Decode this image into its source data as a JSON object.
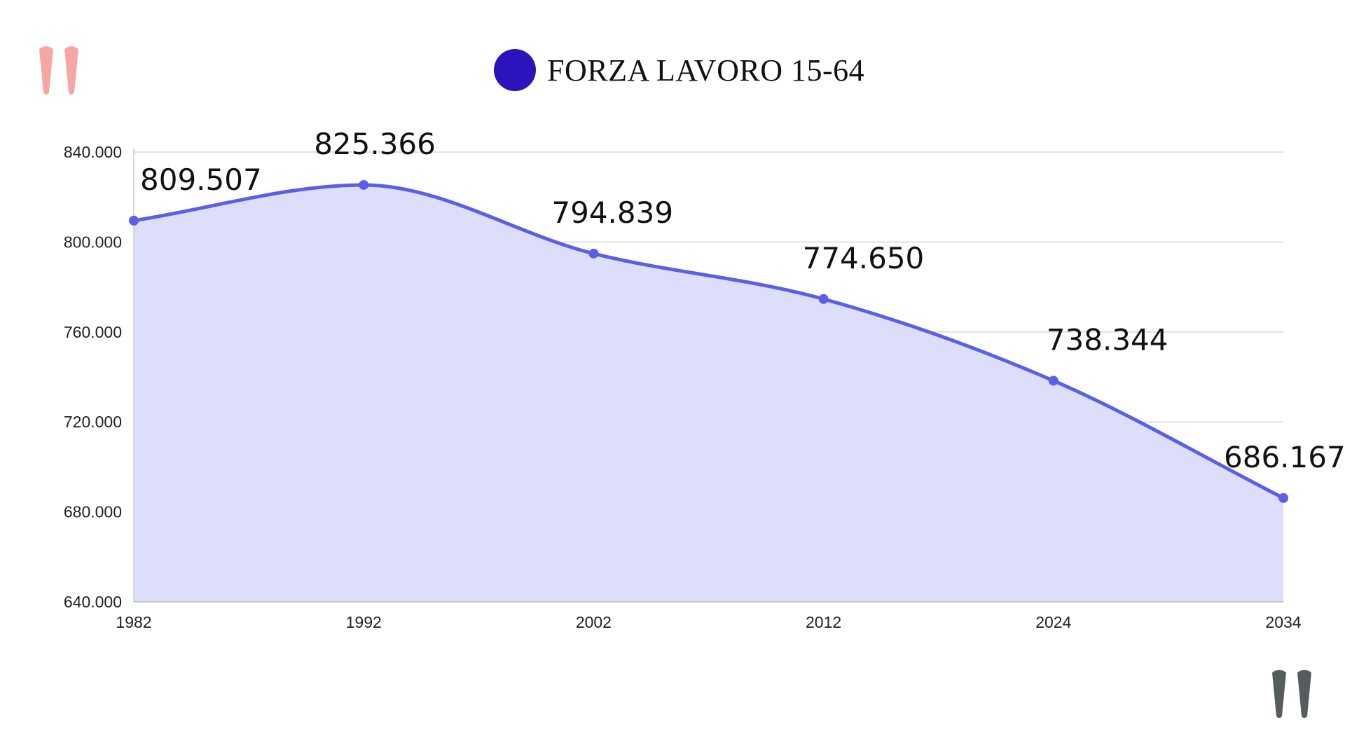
{
  "legend": {
    "label": "FORZA LAVORO 15-64"
  },
  "colors": {
    "series": "#5b5fe8",
    "fill": "#dcdefa",
    "legend_dot": "#2c14bd",
    "grid": "#d6d6e4",
    "quote_left": "#f7a7a3",
    "quote_right": "#565b5e"
  },
  "icons": {
    "top_left": "open-quote-icon",
    "bottom_right": "close-quote-icon"
  },
  "chart_data": {
    "type": "area",
    "x": [
      "1982",
      "1992",
      "2002",
      "2012",
      "2024",
      "2034"
    ],
    "series": [
      {
        "name": "FORZA LAVORO 15-64",
        "values": [
          809507,
          825366,
          794839,
          774650,
          738344,
          686167
        ]
      }
    ],
    "data_labels": [
      "809.507",
      "825.366",
      "794.839",
      "774.650",
      "738.344",
      "686.167"
    ],
    "yticks": [
      "640.000",
      "680.000",
      "720.000",
      "760.000",
      "800.000",
      "840.000"
    ],
    "ylim": [
      640000,
      840000
    ],
    "grid": true,
    "legend_position": "top-center"
  }
}
